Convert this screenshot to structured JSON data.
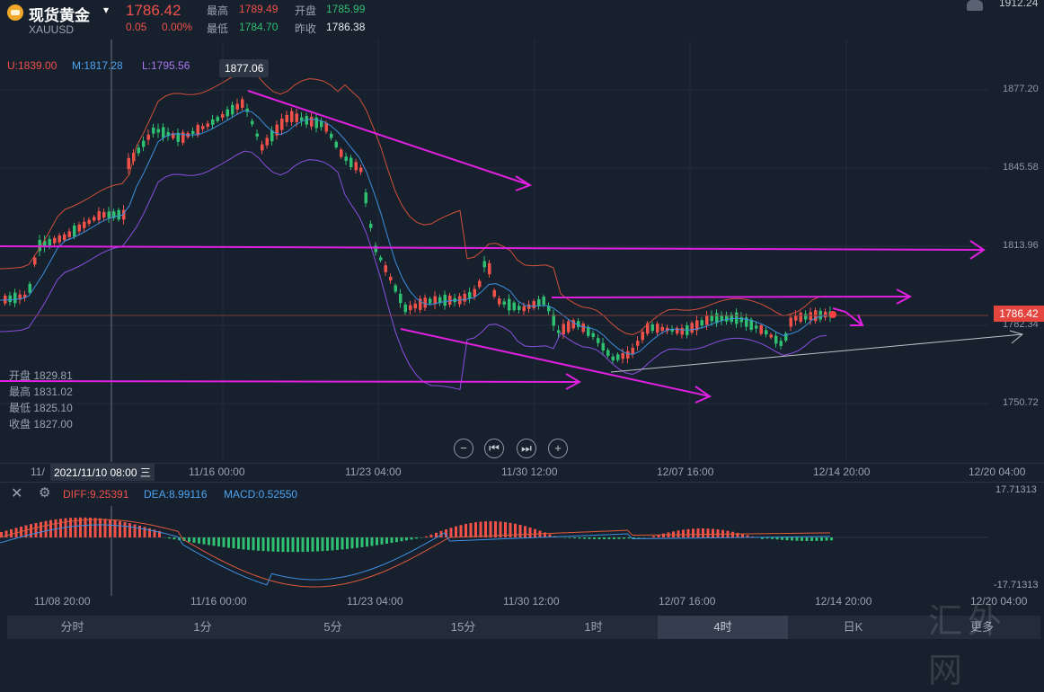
{
  "header": {
    "title": "现货黄金",
    "symbol": "XAUUSD",
    "price": "1786.42",
    "change": "0.05",
    "change_pct": "0.00%",
    "high_label": "最高",
    "high": "1789.49",
    "open_label": "开盘",
    "open": "1785.99",
    "low_label": "最低",
    "low": "1784.70",
    "prev_close_label": "昨收",
    "prev_close": "1786.38",
    "top_right_value": "1912.24"
  },
  "bollinger": {
    "upper": "U:1839.00",
    "middle": "M:1817.28",
    "lower": "L:1795.56"
  },
  "tooltip_high": "1877.06",
  "y_axis": [
    "1877.20",
    "1845.58",
    "1813.96",
    "1782.34",
    "1750.72"
  ],
  "current_price_tag": "1786.42",
  "x_axis_main": [
    "11/",
    "11/16 00:00",
    "11/23 04:00",
    "11/30 12:00",
    "12/07 16:00",
    "12/14 20:00",
    "12/20 04:00"
  ],
  "crosshair_date": "2021/11/10 08:00 三",
  "ohlc_panel": [
    {
      "label": "开盘",
      "value": "1829.81"
    },
    {
      "label": "最高",
      "value": "1831.02"
    },
    {
      "label": "最低",
      "value": "1825.10"
    },
    {
      "label": "收盘",
      "value": "1827.00"
    }
  ],
  "macd": {
    "diff": "DIFF:9.25391",
    "dea": "DEA:8.99116",
    "macd": "MACD:0.52550",
    "y_top": "17.71313",
    "y_bottom": "-17.71313"
  },
  "x_axis_macd": [
    "11/08 20:00",
    "11/16 00:00",
    "11/23 04:00",
    "11/30 12:00",
    "12/07 16:00",
    "12/14 20:00",
    "12/20 04:00"
  ],
  "timeframes": [
    "分时",
    "1分",
    "5分",
    "15分",
    "1时",
    "4时",
    "日K",
    "更多"
  ],
  "active_timeframe": "4时",
  "watermark": "汇外网",
  "colors": {
    "up": "#f0524a",
    "down": "#2fbf71",
    "annotation": "#e020e0",
    "boll_upper": "#d0503a",
    "boll_mid": "#3d8fe0",
    "boll_lower": "#8a4fe0",
    "accent": "#e5453f"
  }
}
